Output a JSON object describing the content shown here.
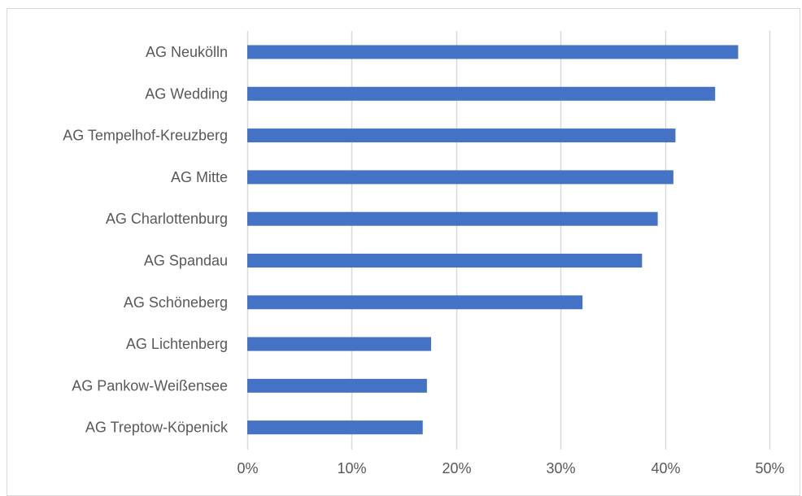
{
  "chart_data": {
    "type": "bar",
    "orientation": "horizontal",
    "categories": [
      "AG Neukölln",
      "AG Wedding",
      "AG Tempelhof-Kreuzberg",
      "AG Mitte",
      "AG Charlottenburg",
      "AG Spandau",
      "AG Schöneberg",
      "AG Lichtenberg",
      "AG Pankow-Weißensee",
      "AG Treptow-Köpenick"
    ],
    "values": [
      0.47,
      0.448,
      0.41,
      0.408,
      0.393,
      0.378,
      0.321,
      0.176,
      0.172,
      0.168
    ],
    "xlim": [
      0,
      0.5
    ],
    "x_ticks": [
      0,
      0.1,
      0.2,
      0.3,
      0.4,
      0.5
    ],
    "x_tick_labels": [
      "0%",
      "10%",
      "20%",
      "30%",
      "40%",
      "50%"
    ],
    "title": "",
    "xlabel": "",
    "ylabel": "",
    "grid": "vertical",
    "legend": "none",
    "bar_color": "#4472c4",
    "grid_color": "#d9d9d9"
  }
}
